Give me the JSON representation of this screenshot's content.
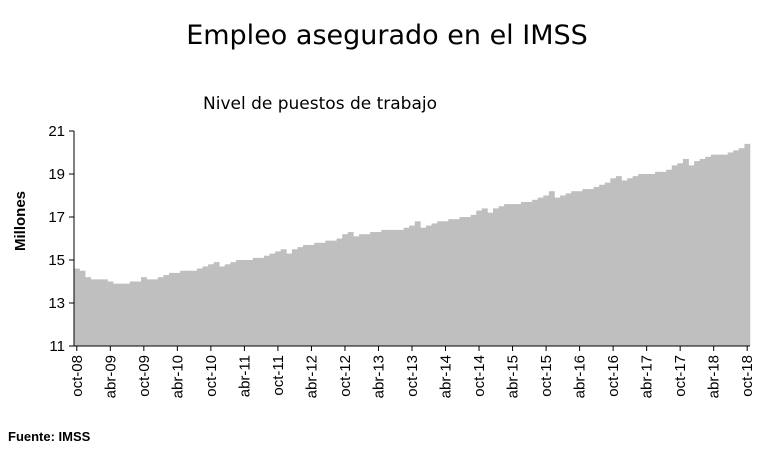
{
  "header": {
    "title": "Empleo asegurado en el IMSS"
  },
  "footer": {
    "source": "Fuente: IMSS"
  },
  "chart_data": {
    "type": "bar",
    "title": "",
    "subtitle": "Nivel de puestos de trabajo",
    "xlabel": "",
    "ylabel": "Millones",
    "ylim": [
      11,
      21
    ],
    "yticks": [
      11,
      13,
      15,
      17,
      19,
      21
    ],
    "grid": false,
    "legend": "none",
    "color": "#bfbfbf",
    "xtick_labels": [
      "oct-08",
      "abr-09",
      "oct-09",
      "abr-10",
      "oct-10",
      "abr-11",
      "oct-11",
      "abr-12",
      "oct-12",
      "abr-13",
      "oct-13",
      "abr-14",
      "oct-14",
      "abr-15",
      "oct-15",
      "abr-16",
      "oct-16",
      "abr-17",
      "oct-17",
      "abr-18",
      "oct-18"
    ],
    "categories": [
      "oct-08",
      "nov-08",
      "dic-08",
      "ene-09",
      "feb-09",
      "mar-09",
      "abr-09",
      "may-09",
      "jun-09",
      "jul-09",
      "ago-09",
      "sep-09",
      "oct-09",
      "nov-09",
      "dic-09",
      "ene-10",
      "feb-10",
      "mar-10",
      "abr-10",
      "may-10",
      "jun-10",
      "jul-10",
      "ago-10",
      "sep-10",
      "oct-10",
      "nov-10",
      "dic-10",
      "ene-11",
      "feb-11",
      "mar-11",
      "abr-11",
      "may-11",
      "jun-11",
      "jul-11",
      "ago-11",
      "sep-11",
      "oct-11",
      "nov-11",
      "dic-11",
      "ene-12",
      "feb-12",
      "mar-12",
      "abr-12",
      "may-12",
      "jun-12",
      "jul-12",
      "ago-12",
      "sep-12",
      "oct-12",
      "nov-12",
      "dic-12",
      "ene-13",
      "feb-13",
      "mar-13",
      "abr-13",
      "may-13",
      "jun-13",
      "jul-13",
      "ago-13",
      "sep-13",
      "oct-13",
      "nov-13",
      "dic-13",
      "ene-14",
      "feb-14",
      "mar-14",
      "abr-14",
      "may-14",
      "jun-14",
      "jul-14",
      "ago-14",
      "sep-14",
      "oct-14",
      "nov-14",
      "dic-14",
      "ene-15",
      "feb-15",
      "mar-15",
      "abr-15",
      "may-15",
      "jun-15",
      "jul-15",
      "ago-15",
      "sep-15",
      "oct-15",
      "nov-15",
      "dic-15",
      "ene-16",
      "feb-16",
      "mar-16",
      "abr-16",
      "may-16",
      "jun-16",
      "jul-16",
      "ago-16",
      "sep-16",
      "oct-16",
      "nov-16",
      "dic-16",
      "ene-17",
      "feb-17",
      "mar-17",
      "abr-17",
      "may-17",
      "jun-17",
      "jul-17",
      "ago-17",
      "sep-17",
      "oct-17",
      "nov-17",
      "dic-17",
      "ene-18",
      "feb-18",
      "mar-18",
      "abr-18",
      "may-18",
      "jun-18",
      "jul-18",
      "ago-18",
      "sep-18",
      "oct-18"
    ],
    "values": [
      14.6,
      14.5,
      14.2,
      14.1,
      14.1,
      14.1,
      14.0,
      13.9,
      13.9,
      13.9,
      14.0,
      14.0,
      14.2,
      14.1,
      14.1,
      14.2,
      14.3,
      14.4,
      14.4,
      14.5,
      14.5,
      14.5,
      14.6,
      14.7,
      14.8,
      14.9,
      14.7,
      14.8,
      14.9,
      15.0,
      15.0,
      15.0,
      15.1,
      15.1,
      15.2,
      15.3,
      15.4,
      15.5,
      15.3,
      15.5,
      15.6,
      15.7,
      15.7,
      15.8,
      15.8,
      15.9,
      15.9,
      16.0,
      16.2,
      16.3,
      16.1,
      16.2,
      16.2,
      16.3,
      16.3,
      16.4,
      16.4,
      16.4,
      16.4,
      16.5,
      16.6,
      16.8,
      16.5,
      16.6,
      16.7,
      16.8,
      16.8,
      16.9,
      16.9,
      17.0,
      17.0,
      17.1,
      17.3,
      17.4,
      17.2,
      17.4,
      17.5,
      17.6,
      17.6,
      17.6,
      17.7,
      17.7,
      17.8,
      17.9,
      18.0,
      18.2,
      17.9,
      18.0,
      18.1,
      18.2,
      18.2,
      18.3,
      18.3,
      18.4,
      18.5,
      18.6,
      18.8,
      18.9,
      18.7,
      18.8,
      18.9,
      19.0,
      19.0,
      19.0,
      19.1,
      19.1,
      19.2,
      19.4,
      19.5,
      19.7,
      19.4,
      19.6,
      19.7,
      19.8,
      19.9,
      19.9,
      19.9,
      20.0,
      20.1,
      20.2,
      20.4
    ]
  }
}
